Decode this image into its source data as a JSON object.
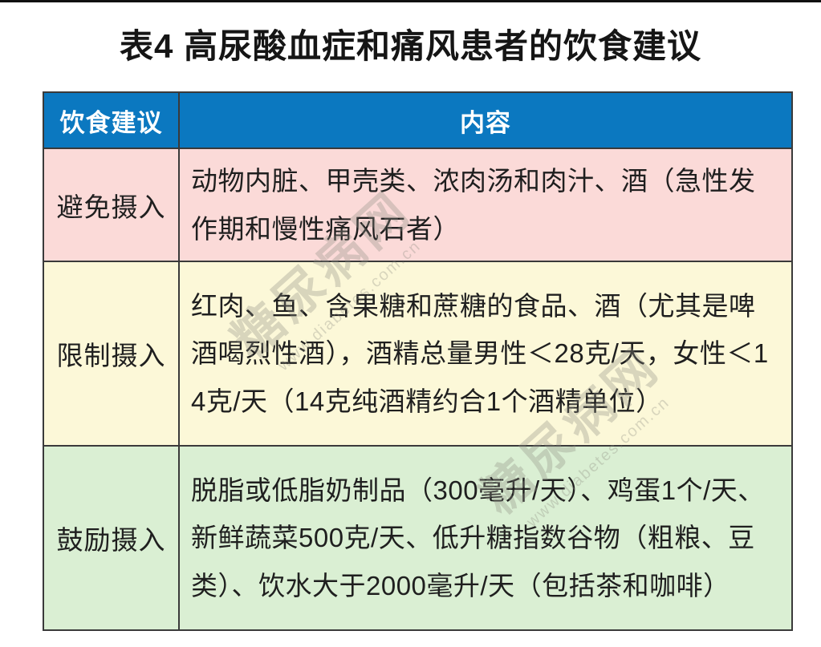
{
  "title": "表4 高尿酸血症和痛风患者的饮食建议",
  "table": {
    "headers": [
      "饮食建议",
      "内容"
    ],
    "rows": [
      {
        "label": "避免摄入",
        "content": "动物内脏、甲壳类、浓肉汤和肉汁、酒（急性发作期和慢性痛风石者）"
      },
      {
        "label": "限制摄入",
        "content": "红肉、鱼、含果糖和蔗糖的食品、酒（尤其是啤酒喝烈性酒），酒精总量男性＜28克/天，女性＜14克/天（14克纯酒精约合1个酒精单位）"
      },
      {
        "label": "鼓励摄入",
        "content": "脱脂或低脂奶制品（300毫升/天）、鸡蛋1个/天、新鲜蔬菜500克/天、低升糖指数谷物（粗粮、豆类）、饮水大于2000毫升/天（包括茶和咖啡）"
      }
    ]
  },
  "watermark": {
    "name": "糖尿病网",
    "url": "www.diabetes.com.cn"
  },
  "colors": {
    "header_bg": "#0b78c0",
    "header_text": "#ffffff",
    "avoid_bg": "#fbdad8",
    "limit_bg": "#fcf8d8",
    "encourage_bg": "#daefd3",
    "border": "#3a3a3a",
    "text": "#1f1f1f"
  }
}
